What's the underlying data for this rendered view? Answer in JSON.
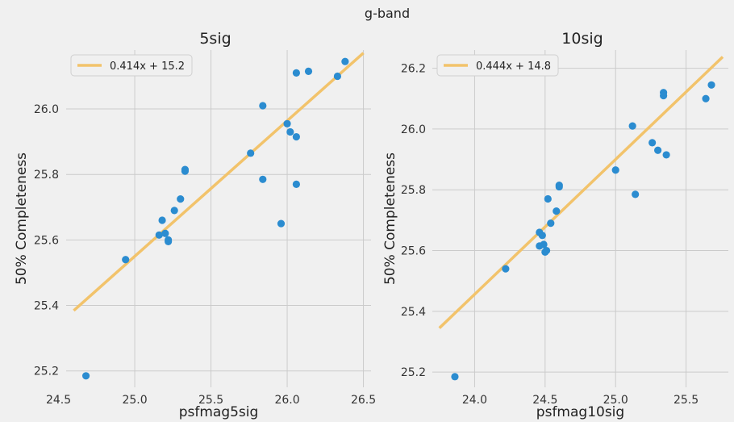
{
  "figure_title": "g-band",
  "colors": {
    "background": "#f0f0f0",
    "grid": "#cbcbcb",
    "points": "#2b8cd0",
    "fit_line": "#f2c36b",
    "legend_border": "#cfcfcf"
  },
  "chart_data": [
    {
      "type": "scatter",
      "title": "5sig",
      "xlabel": "psfmag5sig",
      "ylabel": "50% Completeness",
      "xlim": [
        24.55,
        26.55
      ],
      "ylim": [
        25.15,
        26.18
      ],
      "xticks": [
        24.5,
        25.0,
        25.5,
        26.0,
        26.5
      ],
      "xtick_labels": [
        "24.5",
        "25.0",
        "25.5",
        "26.0",
        "26.5"
      ],
      "yticks": [
        25.2,
        25.4,
        25.6,
        25.8,
        26.0
      ],
      "ytick_labels": [
        "25.2",
        "25.4",
        "25.6",
        "25.8",
        "26.0"
      ],
      "grid": true,
      "legend_position": "top-left",
      "fit": {
        "label": "0.414x + 15.2",
        "slope": 0.414,
        "intercept": 15.2,
        "x_range": [
          24.6,
          26.5
        ]
      },
      "points": [
        {
          "x": 24.68,
          "y": 25.185
        },
        {
          "x": 24.94,
          "y": 25.54
        },
        {
          "x": 25.16,
          "y": 25.615
        },
        {
          "x": 25.18,
          "y": 25.66
        },
        {
          "x": 25.2,
          "y": 25.62
        },
        {
          "x": 25.22,
          "y": 25.6
        },
        {
          "x": 25.22,
          "y": 25.595
        },
        {
          "x": 25.26,
          "y": 25.69
        },
        {
          "x": 25.3,
          "y": 25.725
        },
        {
          "x": 25.33,
          "y": 25.81
        },
        {
          "x": 25.33,
          "y": 25.815
        },
        {
          "x": 25.76,
          "y": 25.865
        },
        {
          "x": 25.84,
          "y": 25.785
        },
        {
          "x": 25.84,
          "y": 26.01
        },
        {
          "x": 25.96,
          "y": 25.65
        },
        {
          "x": 26.0,
          "y": 25.955
        },
        {
          "x": 26.02,
          "y": 25.93
        },
        {
          "x": 26.06,
          "y": 25.915
        },
        {
          "x": 26.06,
          "y": 25.77
        },
        {
          "x": 26.06,
          "y": 26.11
        },
        {
          "x": 26.14,
          "y": 26.115
        },
        {
          "x": 26.33,
          "y": 26.1
        },
        {
          "x": 26.38,
          "y": 26.145
        }
      ]
    },
    {
      "type": "scatter",
      "title": "10sig",
      "xlabel": "psfmag10sig",
      "ylabel": "50% Completeness",
      "xlim": [
        23.7,
        25.8
      ],
      "ylim": [
        25.15,
        26.26
      ],
      "xticks": [
        24.0,
        24.5,
        25.0,
        25.5
      ],
      "xtick_labels": [
        "24.0",
        "24.5",
        "25.0",
        "25.5"
      ],
      "yticks": [
        25.2,
        25.4,
        25.6,
        25.8,
        26.0,
        26.2
      ],
      "ytick_labels": [
        "25.2",
        "25.4",
        "25.6",
        "25.8",
        "26.0",
        "26.2"
      ],
      "grid": true,
      "legend_position": "top-left",
      "fit": {
        "label": "0.444x + 14.8",
        "slope": 0.444,
        "intercept": 14.8,
        "x_range": [
          23.75,
          25.76
        ]
      },
      "points": [
        {
          "x": 23.86,
          "y": 25.185
        },
        {
          "x": 24.22,
          "y": 25.54
        },
        {
          "x": 24.46,
          "y": 25.615
        },
        {
          "x": 24.46,
          "y": 25.66
        },
        {
          "x": 24.48,
          "y": 25.65
        },
        {
          "x": 24.49,
          "y": 25.62
        },
        {
          "x": 24.5,
          "y": 25.595
        },
        {
          "x": 24.51,
          "y": 25.6
        },
        {
          "x": 24.52,
          "y": 25.77
        },
        {
          "x": 24.54,
          "y": 25.69
        },
        {
          "x": 24.58,
          "y": 25.73
        },
        {
          "x": 24.6,
          "y": 25.81
        },
        {
          "x": 24.6,
          "y": 25.815
        },
        {
          "x": 25.0,
          "y": 25.865
        },
        {
          "x": 25.12,
          "y": 26.01
        },
        {
          "x": 25.14,
          "y": 25.785
        },
        {
          "x": 25.26,
          "y": 25.955
        },
        {
          "x": 25.3,
          "y": 25.93
        },
        {
          "x": 25.34,
          "y": 26.11
        },
        {
          "x": 25.34,
          "y": 26.12
        },
        {
          "x": 25.36,
          "y": 25.915
        },
        {
          "x": 25.64,
          "y": 26.1
        },
        {
          "x": 25.68,
          "y": 26.145
        }
      ]
    }
  ]
}
